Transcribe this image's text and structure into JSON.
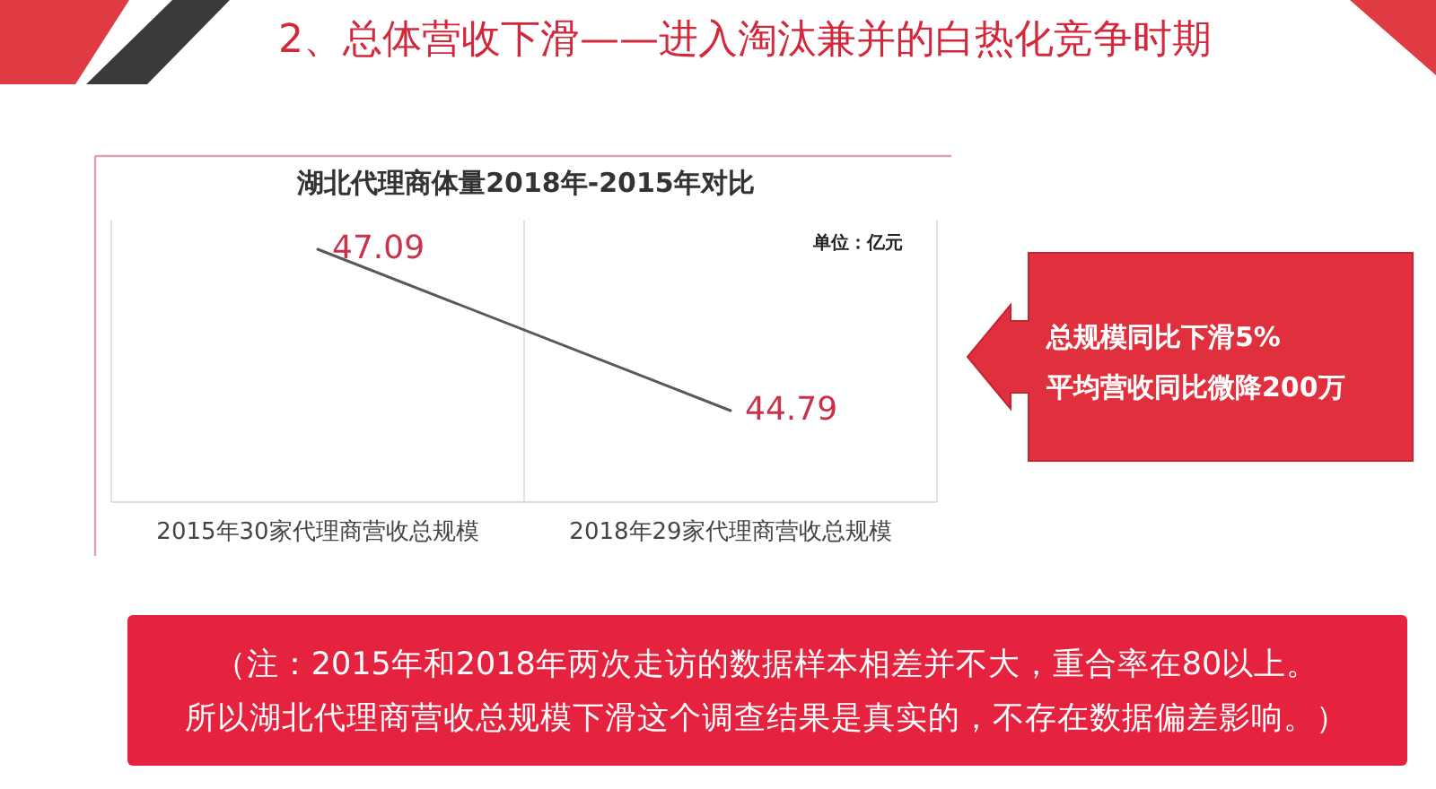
{
  "chart_data": {
    "type": "line",
    "title": "2、总体营收下滑——进入淘汰兼并的白热化竞争时期",
    "subtitle": "湖北代理商体量2018年-2015年对比",
    "categories": [
      "2015年30家代理商营收总规模",
      "2018年29家代理商营收总规模"
    ],
    "series": [
      {
        "color": "#595959",
        "values": [
          47.09,
          44.79
        ]
      }
    ],
    "data_labels": true,
    "marker": "none",
    "line_style": "solid",
    "grid": "x",
    "annotations": [
      "单位：亿元",
      "总规模同比下滑5%",
      "平均营收同比微降200万",
      "（注：2015年和2018年两次走访的数据样本相差并不大，重合率在80以上。",
      "所以湖北代理商营收总规模下滑这个调查结果是真实的，不存在数据偏差影响。）"
    ]
  }
}
